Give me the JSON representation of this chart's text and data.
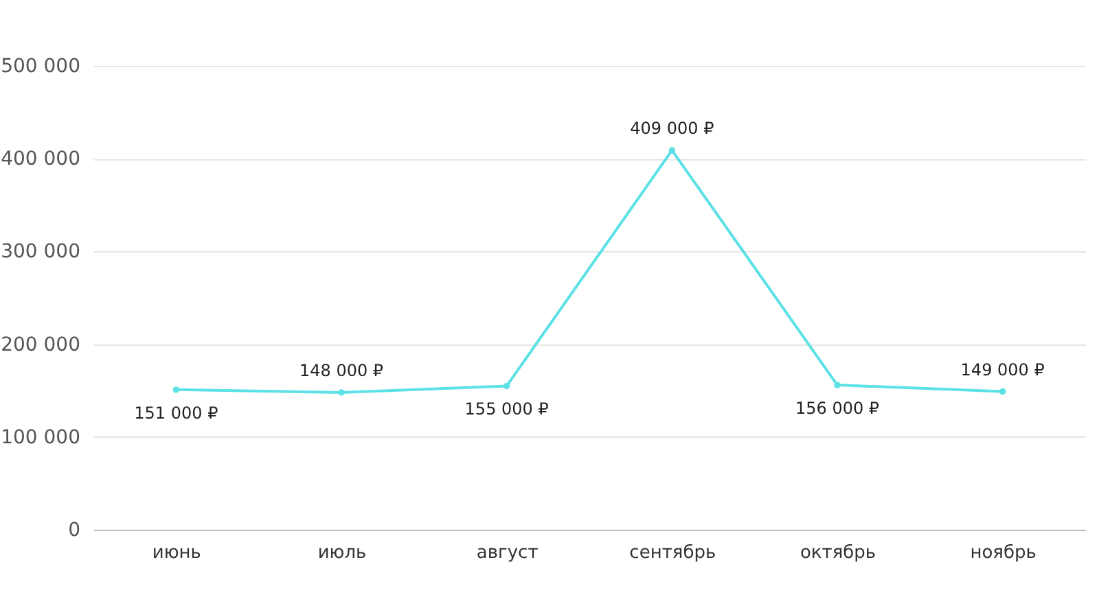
{
  "chart_data": {
    "type": "line",
    "categories": [
      "июнь",
      "июль",
      "август",
      "сентябрь",
      "октябрь",
      "ноябрь"
    ],
    "values": [
      151000,
      148000,
      155000,
      409000,
      156000,
      149000
    ],
    "color": "#5ce1e6",
    "value_labels": [
      "151 000 ₽",
      "148 000 ₽",
      "155 000 ₽",
      "409 000 ₽",
      "156 000 ₽",
      "149 000 ₽"
    ],
    "ylim": [
      0,
      500000
    ],
    "yticks": [
      0,
      {
        "value": 100000,
        "label": "100 000"
      },
      {
        "value": 200000,
        "label": "200 000"
      },
      {
        "value": 300000,
        "label": "300 000"
      },
      {
        "value": 400000,
        "label": "400 000"
      },
      {
        "value": 500000,
        "label": "500 000"
      }
    ],
    "grid": "y",
    "marker": "circle",
    "line_style": "solid"
  }
}
